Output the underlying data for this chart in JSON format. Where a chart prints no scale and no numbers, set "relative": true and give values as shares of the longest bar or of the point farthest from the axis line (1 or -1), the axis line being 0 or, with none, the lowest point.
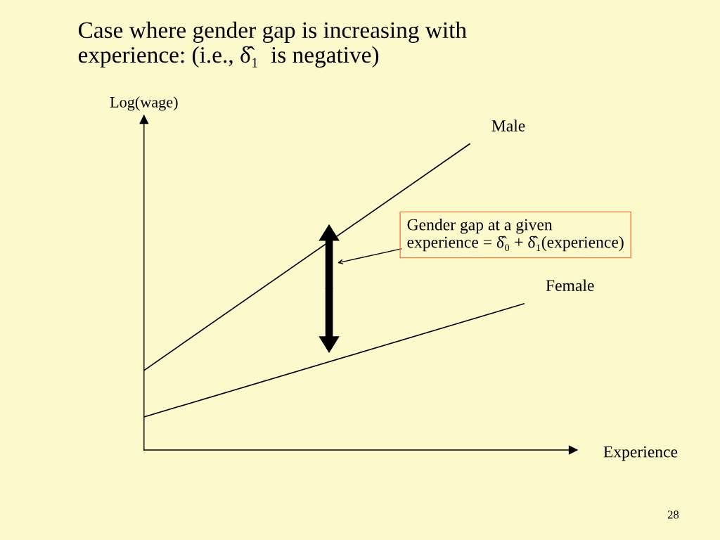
{
  "chart_data": {
    "type": "line",
    "title": "Case where gender gap is increasing with\nexperience: (i.e., δ̂₁  is negative)",
    "ylabel": "Log(wage)",
    "xlabel": "Experience",
    "relative": true,
    "categories": [
      null,
      null,
      null,
      null,
      null,
      null,
      null,
      null
    ],
    "series": [
      {
        "name": "Male",
        "color": "#000000",
        "values": [
          0.26,
          null,
          null,
          null,
          null,
          null,
          1,
          null
        ]
      },
      {
        "name": "Female",
        "color": "#000000",
        "values": [
          0.108,
          null,
          null,
          null,
          null,
          null,
          null,
          0.478
        ]
      }
    ],
    "annotations": [
      "Gender gap at a given\nexperience = δ̂₀ + δ̂₁(experience)",
      "28"
    ],
    "grid": false,
    "marker": "none",
    "line_style": "solid"
  }
}
